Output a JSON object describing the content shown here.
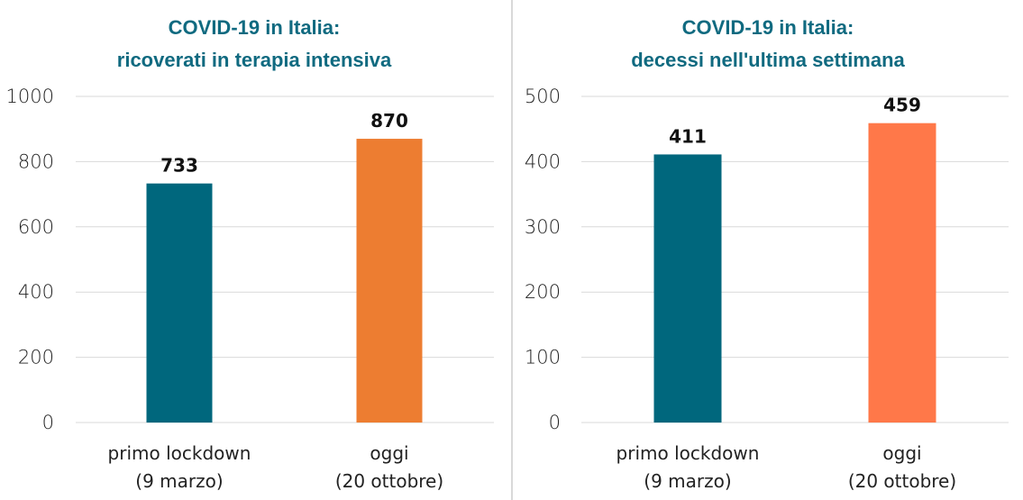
{
  "chart_data": [
    {
      "type": "bar",
      "title": [
        "COVID-19 in Italia:",
        "ricoverati in terapia intensiva"
      ],
      "categories": [
        [
          "primo lockdown",
          "(9 marzo)"
        ],
        [
          "oggi",
          "(20 ottobre)"
        ]
      ],
      "values": [
        733,
        870
      ],
      "colors": [
        "#00677d",
        "#ed7d31"
      ],
      "ylim": [
        0,
        1000
      ],
      "yticks": [
        0,
        200,
        400,
        600,
        800,
        1000
      ],
      "grid": true,
      "xlabel": "",
      "ylabel": ""
    },
    {
      "type": "bar",
      "title": [
        "COVID-19 in Italia:",
        "decessi nell'ultima settimana"
      ],
      "categories": [
        [
          "primo lockdown",
          "(9 marzo)"
        ],
        [
          "oggi",
          "(20 ottobre)"
        ]
      ],
      "values": [
        411,
        459
      ],
      "colors": [
        "#00677d",
        "#ff7849"
      ],
      "ylim": [
        0,
        500
      ],
      "yticks": [
        0,
        100,
        200,
        300,
        400,
        500
      ],
      "grid": true,
      "xlabel": "",
      "ylabel": ""
    }
  ]
}
